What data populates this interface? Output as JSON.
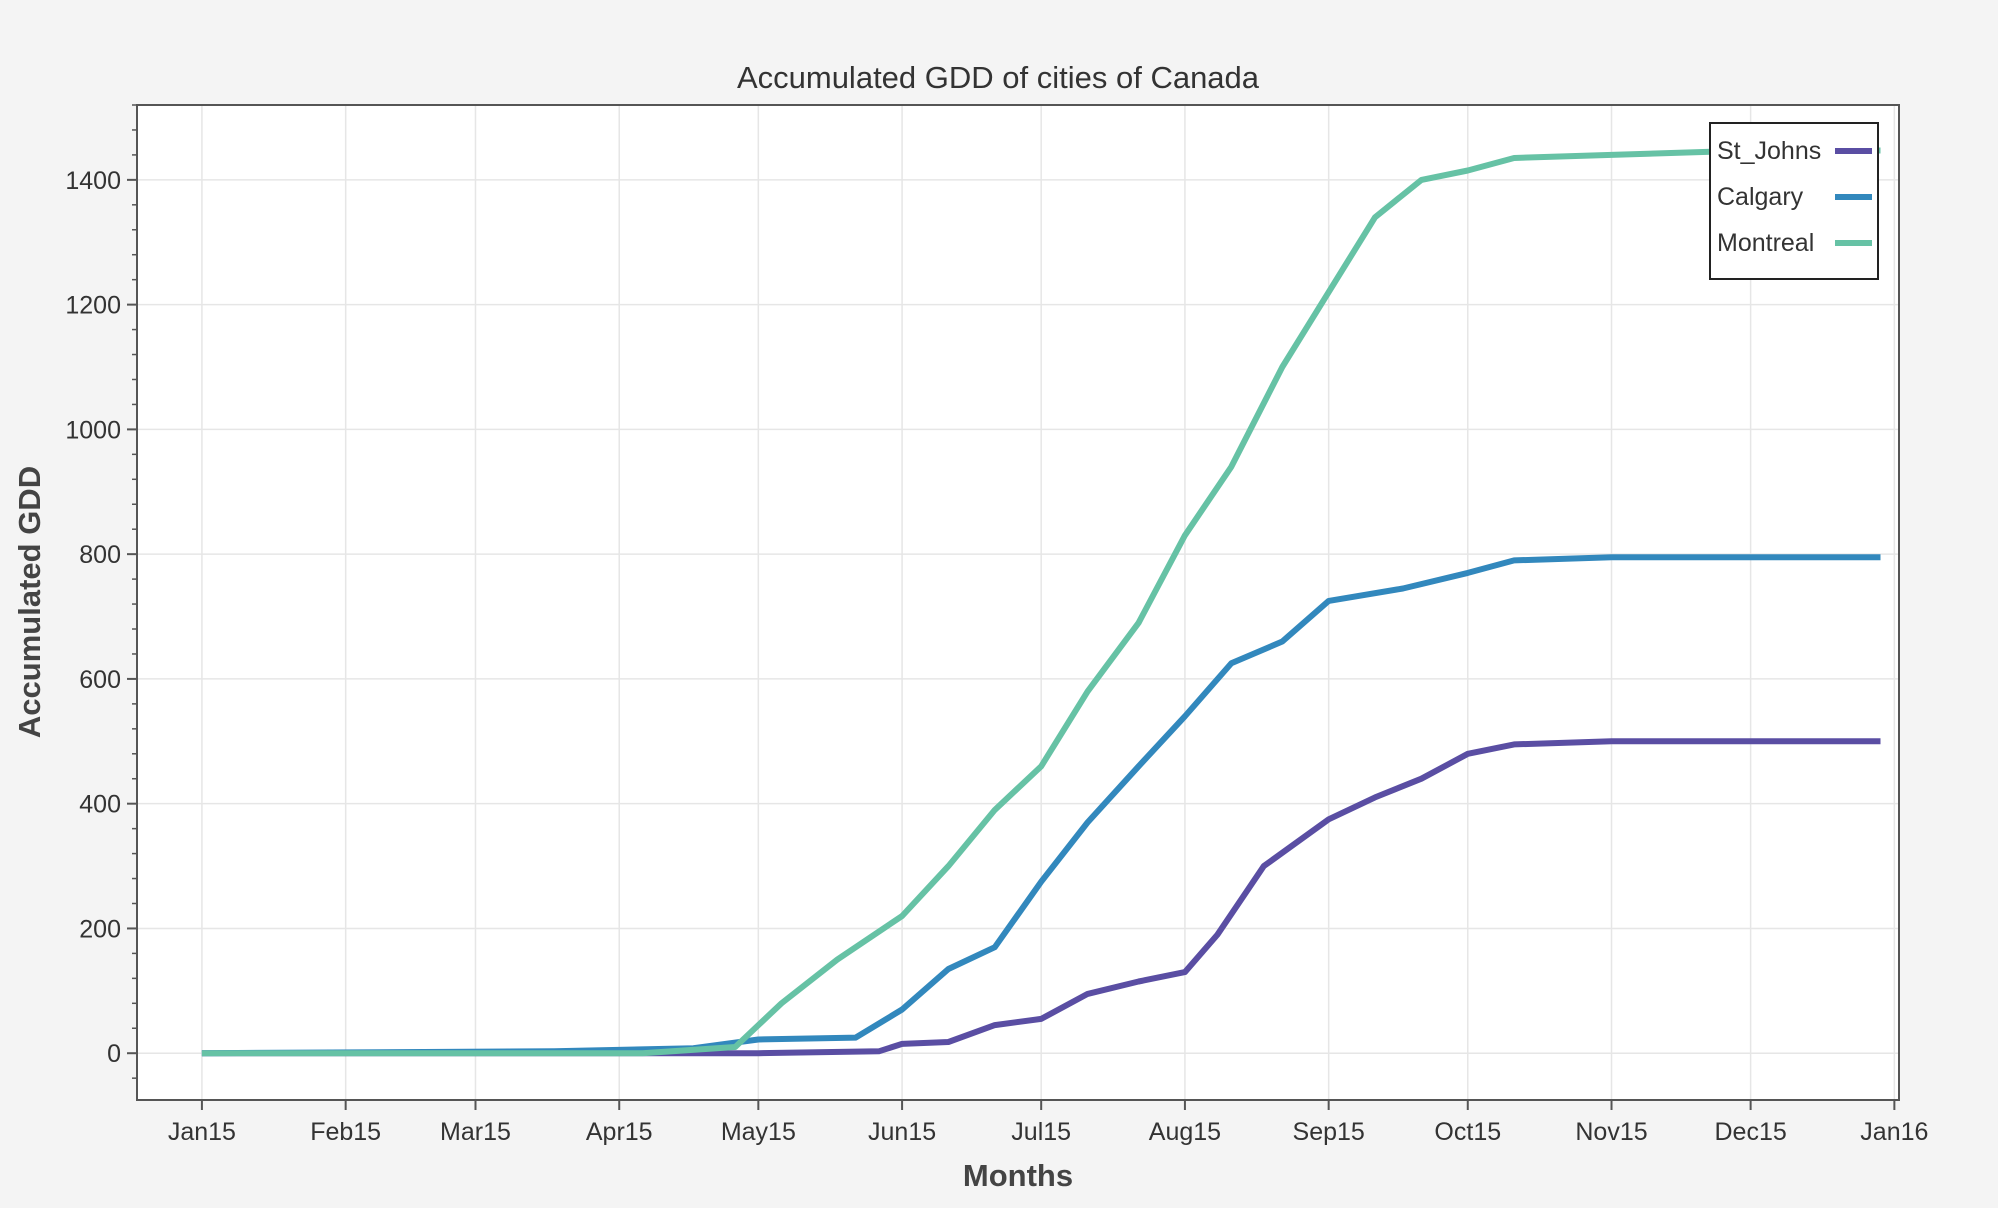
{
  "colors": {
    "page_background": "#f4f4f4",
    "plot_background": "#ffffff",
    "grid": "#e6e6e6",
    "frame": "#555555"
  },
  "chart_data": {
    "type": "line",
    "title": "Accumulated GDD of cities of Canada",
    "xlabel": "Months",
    "ylabel": "Accumulated GDD",
    "xlim": [
      "2015-01-01",
      "2016-01-16"
    ],
    "ylim": [
      -75,
      1520
    ],
    "x_ticks": [
      {
        "date": "2015-01-15",
        "label": "Jan15"
      },
      {
        "date": "2015-02-15",
        "label": "Feb15"
      },
      {
        "date": "2015-03-15",
        "label": "Mar15"
      },
      {
        "date": "2015-04-15",
        "label": "Apr15"
      },
      {
        "date": "2015-05-15",
        "label": "May15"
      },
      {
        "date": "2015-06-15",
        "label": "Jun15"
      },
      {
        "date": "2015-07-15",
        "label": "Jul15"
      },
      {
        "date": "2015-08-15",
        "label": "Aug15"
      },
      {
        "date": "2015-09-15",
        "label": "Sep15"
      },
      {
        "date": "2015-10-15",
        "label": "Oct15"
      },
      {
        "date": "2015-11-15",
        "label": "Nov15"
      },
      {
        "date": "2015-12-15",
        "label": "Dec15"
      },
      {
        "date": "2016-01-15",
        "label": "Jan16"
      }
    ],
    "y_ticks": [
      0,
      200,
      400,
      600,
      800,
      1000,
      1200,
      1400
    ],
    "grid": true,
    "legend": "top-right",
    "series": [
      {
        "name": "St_Johns",
        "color": "#5a4ea3",
        "x": [
          "2015-01-15",
          "2015-05-15",
          "2015-06-10",
          "2015-06-15",
          "2015-06-25",
          "2015-07-05",
          "2015-07-15",
          "2015-07-25",
          "2015-08-05",
          "2015-08-15",
          "2015-08-22",
          "2015-09-01",
          "2015-09-15",
          "2015-09-25",
          "2015-10-05",
          "2015-10-15",
          "2015-10-25",
          "2015-11-15",
          "2016-01-12"
        ],
        "y": [
          0,
          0,
          3,
          15,
          18,
          45,
          55,
          95,
          115,
          130,
          190,
          300,
          375,
          410,
          440,
          480,
          495,
          500,
          500
        ]
      },
      {
        "name": "Calgary",
        "color": "#3288bd",
        "x": [
          "2015-01-15",
          "2015-04-01",
          "2015-05-01",
          "2015-05-15",
          "2015-06-05",
          "2015-06-15",
          "2015-06-25",
          "2015-07-05",
          "2015-07-15",
          "2015-07-25",
          "2015-08-05",
          "2015-08-15",
          "2015-08-25",
          "2015-09-05",
          "2015-09-15",
          "2015-10-01",
          "2015-10-15",
          "2015-10-25",
          "2015-11-15",
          "2016-01-12"
        ],
        "y": [
          0,
          3,
          8,
          22,
          25,
          70,
          135,
          170,
          275,
          370,
          460,
          540,
          625,
          660,
          725,
          745,
          770,
          790,
          795,
          795
        ]
      },
      {
        "name": "Montreal",
        "color": "#66c2a5",
        "x": [
          "2015-01-15",
          "2015-04-20",
          "2015-05-10",
          "2015-05-20",
          "2015-06-01",
          "2015-06-15",
          "2015-06-25",
          "2015-07-05",
          "2015-07-15",
          "2015-07-25",
          "2015-08-05",
          "2015-08-15",
          "2015-08-25",
          "2015-09-05",
          "2015-09-15",
          "2015-09-25",
          "2015-10-05",
          "2015-10-15",
          "2015-10-25",
          "2015-11-15",
          "2015-12-15",
          "2016-01-12"
        ],
        "y": [
          0,
          0,
          10,
          80,
          150,
          220,
          300,
          390,
          460,
          580,
          690,
          830,
          940,
          1100,
          1220,
          1340,
          1400,
          1415,
          1435,
          1440,
          1447,
          1447
        ]
      }
    ]
  }
}
